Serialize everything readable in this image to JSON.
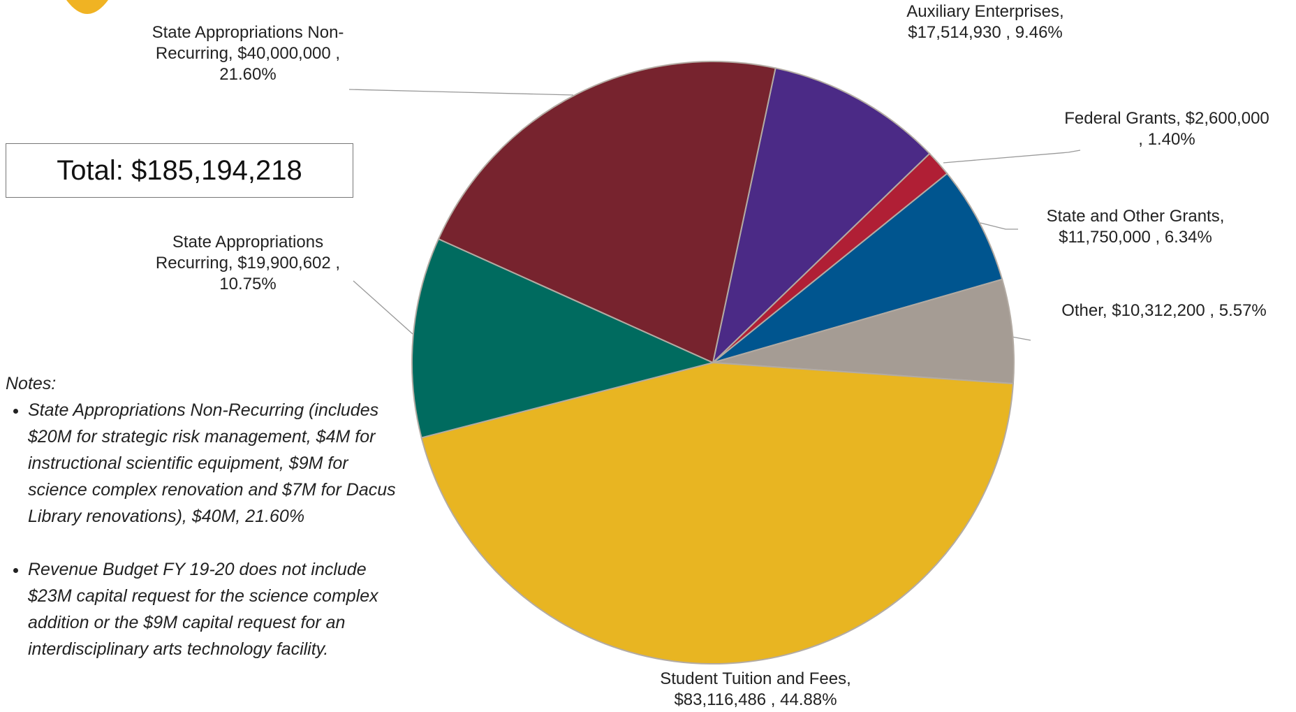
{
  "chart_data": {
    "type": "pie",
    "categories": [
      "Auxiliary Enterprises,",
      "Federal Grants,",
      "State and Other Grants,",
      "Other,",
      "Student Tuition and Fees,",
      "State Appropriations Recurring,",
      "State Appropriations Non-Recurring,"
    ],
    "values": [
      17514930,
      2600000,
      11750000,
      10312200,
      83116486,
      19900602,
      40000000
    ],
    "value_labels": [
      "$17,514,930 , 9.46%",
      "$2,600,000 , 1.40%",
      "$11,750,000 , 6.34%",
      "$10,312,200 , 5.57%",
      "$83,116,486 , 44.88%",
      "$19,900,602 , 10.75%",
      "$40,000,000 , 21.60%"
    ],
    "colors": [
      "#4b2a86",
      "#b01f35",
      "#00558f",
      "#a59c94",
      "#e8b522",
      "#006b5f",
      "#77232e"
    ],
    "annotations": [
      "Total: $185,194,218"
    ]
  },
  "notes": {
    "title": "Notes:",
    "items": [
      "State Appropriations Non-Recurring (includes $20M for strategic risk management, $4M for instructional scientific equipment, $9M for science complex renovation and $7M for Dacus Library renovations), $40M, 21.60%",
      "Revenue Budget FY 19-20 does not include $23M capital request for the science complex addition or the $9M capital request for an interdisciplinary arts technology facility."
    ]
  }
}
